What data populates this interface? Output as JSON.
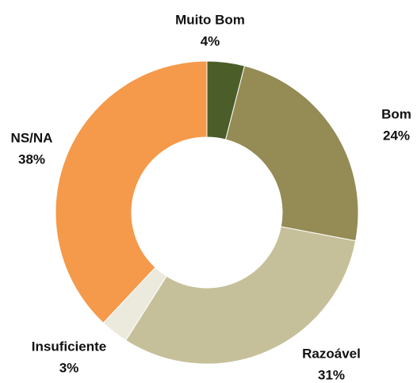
{
  "chart_data": {
    "type": "donut",
    "categories": [
      "Muito Bom",
      "Bom",
      "Razoável",
      "Insuficiente",
      "NS/NA"
    ],
    "values": [
      4,
      24,
      31,
      3,
      38
    ],
    "value_labels": [
      "4%",
      "24%",
      "31%",
      "3%",
      "38%"
    ],
    "colors": [
      "#4b5e2a",
      "#948b55",
      "#c6c09a",
      "#ece9dd",
      "#f5994a"
    ]
  }
}
